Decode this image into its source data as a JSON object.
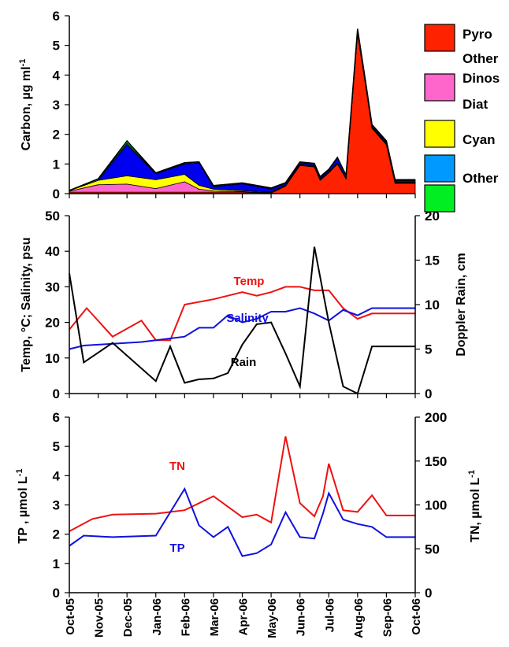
{
  "chart_data": [
    {
      "type": "area",
      "stacked": true,
      "ylabel": "Carbon, µg ml",
      "ylabel_superscript": "-1",
      "ylim": [
        0,
        6
      ],
      "y_ticks": [
        "0",
        "1",
        "2",
        "3",
        "4",
        "5",
        "6"
      ],
      "x": [
        0.0,
        1.0,
        2.0,
        3.0,
        4.0,
        4.5,
        5.0,
        6.0,
        7.0,
        7.5,
        8.0,
        8.5,
        8.7,
        9.0,
        9.3,
        9.6,
        10.0,
        10.3,
        10.5,
        11.0,
        11.3,
        11.6,
        12.0
      ],
      "legend_position": "right",
      "series": [
        {
          "name": "Pyro",
          "color": "#ff2200",
          "values": [
            0.05,
            0.05,
            0.05,
            0.05,
            0.05,
            0.05,
            0.05,
            0.05,
            0.02,
            0.25,
            0.95,
            0.9,
            0.45,
            0.7,
            1.0,
            0.5,
            5.4,
            3.5,
            2.2,
            1.65,
            0.35,
            0.35,
            0.35
          ]
        },
        {
          "name": "Other Dinos",
          "color": "#ff66cc",
          "values": [
            0.03,
            0.25,
            0.27,
            0.12,
            0.35,
            0.1,
            0.04,
            0.02,
            0.02,
            0.02,
            0.02,
            0.02,
            0.02,
            0.02,
            0.02,
            0.02,
            0.02,
            0.02,
            0.02,
            0.02,
            0.02,
            0.02,
            0.02
          ]
        },
        {
          "name": "Diat",
          "color": "#ffff00",
          "values": [
            0.02,
            0.15,
            0.28,
            0.3,
            0.25,
            0.13,
            0.06,
            0.03,
            0.02,
            0.02,
            0.02,
            0.02,
            0.02,
            0.02,
            0.02,
            0.02,
            0.02,
            0.02,
            0.02,
            0.02,
            0.02,
            0.02,
            0.02
          ]
        },
        {
          "name": "Cyan",
          "color": "#0099ff",
          "values": [
            0.01,
            0.04,
            0.05,
            0.02,
            0.03,
            0.03,
            0.03,
            0.02,
            0.02,
            0.02,
            0.02,
            0.02,
            0.02,
            0.02,
            0.02,
            0.02,
            0.02,
            0.02,
            0.02,
            0.02,
            0.02,
            0.02,
            0.02
          ]
        },
        {
          "name": "Other",
          "color": "#00ee22",
          "values": [
            0.0,
            0.01,
            0.08,
            0.01,
            0.01,
            0.01,
            0.01,
            0.01,
            0.01,
            0.01,
            0.01,
            0.01,
            0.01,
            0.01,
            0.01,
            0.01,
            0.05,
            0.03,
            0.02,
            0.02,
            0.01,
            0.01,
            0.01
          ]
        }
      ],
      "dark_blue_band": {
        "color": "#0000ee",
        "values": [
          0.0,
          0.0,
          1.05,
          0.2,
          0.35,
          0.75,
          0.08,
          0.23,
          0.1,
          0.05,
          0.05,
          0.05,
          0.05,
          0.05,
          0.15,
          0.05,
          0.05,
          0.05,
          0.05,
          0.05,
          0.05,
          0.05,
          0.05
        ]
      },
      "legend": [
        {
          "label": "Pyro",
          "color": "#ff2200"
        },
        {
          "label": "Other Dinos",
          "color": "#ff66cc"
        },
        {
          "label": "Diat",
          "color": "#ffff00"
        },
        {
          "label": "Cyan",
          "color": "#0099ff"
        },
        {
          "label": "Other",
          "color": "#00ee22"
        }
      ]
    },
    {
      "type": "line",
      "ylabel": "Temp, °C; Salinity, psu",
      "ylim": [
        0,
        50
      ],
      "y_ticks": [
        "0",
        "10",
        "20",
        "30",
        "40",
        "50"
      ],
      "y2label": "Doppler Rain, cm",
      "y2lim": [
        0,
        20
      ],
      "y2_ticks": [
        "0",
        "5",
        "10",
        "15",
        "20"
      ],
      "series": [
        {
          "name": "Temp",
          "axis": "left",
          "color": "#ee1111",
          "x": [
            0.0,
            0.6,
            1.5,
            2.5,
            3.0,
            3.5,
            4.0,
            5.0,
            5.5,
            6.0,
            6.5,
            7.0,
            7.5,
            8.0,
            8.5,
            9.0,
            9.5,
            10.0,
            10.5,
            10.8,
            11.2,
            11.6,
            12.0
          ],
          "values": [
            18.0,
            24.0,
            16.0,
            20.5,
            15.0,
            15.0,
            25.0,
            26.5,
            27.5,
            28.5,
            27.5,
            28.5,
            30.0,
            30.0,
            29.0,
            29.0,
            24.0,
            21.0,
            22.5,
            22.5,
            22.5,
            22.5,
            22.5
          ]
        },
        {
          "name": "Salinity",
          "axis": "left",
          "color": "#1111dd",
          "x": [
            0.0,
            0.5,
            1.5,
            2.5,
            3.0,
            4.0,
            4.5,
            5.0,
            5.5,
            6.0,
            6.5,
            7.0,
            7.5,
            8.0,
            8.5,
            9.0,
            9.5,
            10.0,
            10.5,
            11.0,
            11.5,
            12.0
          ],
          "values": [
            12.5,
            13.5,
            14.0,
            14.5,
            15.0,
            16.0,
            18.5,
            18.5,
            22.0,
            20.0,
            21.0,
            23.0,
            23.0,
            24.0,
            22.5,
            20.5,
            23.5,
            22.0,
            24.0,
            24.0,
            24.0,
            24.0
          ]
        },
        {
          "name": "Rain",
          "axis": "right",
          "color": "#000000",
          "x": [
            0.0,
            0.5,
            1.5,
            3.0,
            3.5,
            4.0,
            4.5,
            5.0,
            5.5,
            6.0,
            6.5,
            7.0,
            7.5,
            8.0,
            8.5,
            9.0,
            9.5,
            10.0,
            10.5,
            11.0,
            11.5,
            12.0
          ],
          "values": [
            13.5,
            3.5,
            5.7,
            1.4,
            5.3,
            1.2,
            1.6,
            1.7,
            2.3,
            5.5,
            7.8,
            8.0,
            4.5,
            0.8,
            16.5,
            8.0,
            0.8,
            0.0,
            5.3,
            5.3,
            5.3,
            5.3
          ]
        }
      ],
      "annotations": [
        {
          "text": "Temp",
          "color": "#ee1111"
        },
        {
          "text": "Salinity",
          "color": "#1111dd"
        },
        {
          "text": "Rain",
          "color": "#000000"
        }
      ]
    },
    {
      "type": "line",
      "ylabel": "TP , µmol L",
      "ylabel_superscript": "-1",
      "ylim": [
        0,
        6
      ],
      "y_ticks": [
        "0",
        "1",
        "2",
        "3",
        "4",
        "5",
        "6"
      ],
      "y2label": "TN, µmol L",
      "y2label_superscript": "-1",
      "y2lim": [
        0,
        200
      ],
      "y2_ticks": [
        "0",
        "50",
        "100",
        "150",
        "200"
      ],
      "x_tick_labels": [
        "Oct-05",
        "Nov-05",
        "Dec-05",
        "Jan-06",
        "Feb-06",
        "Mar-06",
        "Apr-06",
        "May-06",
        "Jun-06",
        "Jul-06",
        "Aug-06",
        "Sep-06",
        "Oct-06"
      ],
      "series": [
        {
          "name": "TN",
          "axis": "right",
          "color": "#ee1111",
          "x": [
            0.0,
            0.8,
            1.5,
            3.0,
            4.0,
            4.5,
            5.0,
            5.5,
            6.0,
            6.5,
            7.0,
            7.5,
            8.0,
            8.5,
            8.8,
            9.0,
            9.5,
            10.0,
            10.5,
            11.0,
            11.5,
            12.0
          ],
          "values": [
            70,
            84,
            89,
            90,
            94,
            102,
            110,
            98,
            86,
            89,
            80,
            178,
            102,
            87,
            110,
            147,
            94,
            92,
            111,
            88,
            88,
            88
          ]
        },
        {
          "name": "TP",
          "axis": "left",
          "color": "#1111dd",
          "x": [
            0.0,
            0.5,
            1.5,
            3.0,
            4.0,
            4.5,
            5.0,
            5.5,
            6.0,
            6.5,
            7.0,
            7.5,
            8.0,
            8.5,
            8.8,
            9.0,
            9.5,
            10.0,
            10.5,
            11.0,
            11.5,
            12.0
          ],
          "values": [
            1.6,
            1.95,
            1.9,
            1.95,
            3.55,
            2.3,
            1.9,
            2.25,
            1.25,
            1.35,
            1.65,
            2.75,
            1.9,
            1.85,
            2.7,
            3.4,
            2.5,
            2.35,
            2.25,
            1.9,
            1.9,
            1.9
          ]
        }
      ],
      "annotations": [
        {
          "text": "TN",
          "color": "#ee1111"
        },
        {
          "text": "TP",
          "color": "#1111dd"
        }
      ]
    }
  ]
}
